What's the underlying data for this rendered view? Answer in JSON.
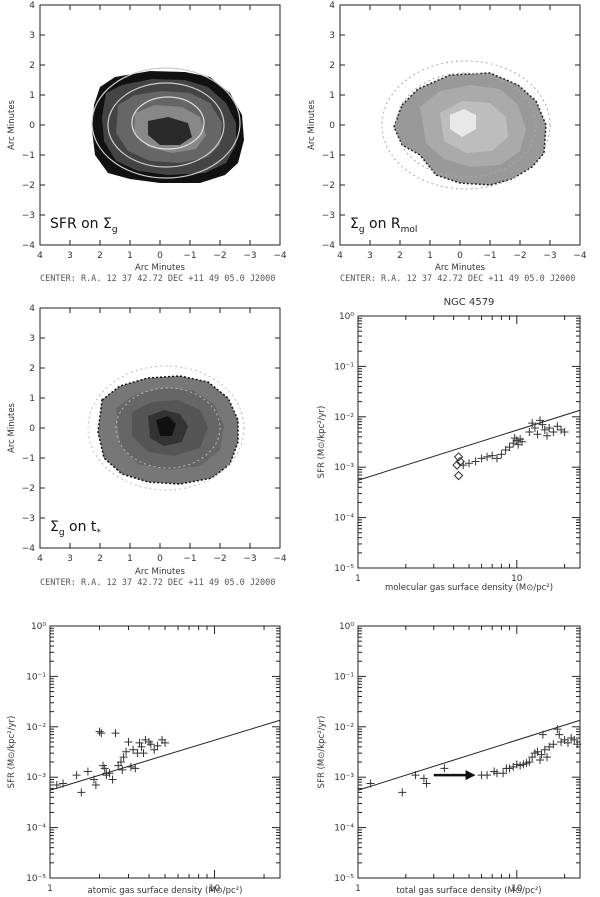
{
  "maps": [
    {
      "label_main": "SFR on Σ",
      "label_sub": "g",
      "xlabel": "Arc Minutes",
      "ylabel": "Arc Minutes",
      "center_text": "CENTER:  R.A. 12 37 42.72      DEC  +11 49 05.0      J2000",
      "x_ticks": [
        "4",
        "3",
        "2",
        "1",
        "0",
        "−1",
        "−2",
        "−3",
        "−4"
      ],
      "y_ticks": [
        "4",
        "3",
        "2",
        "1",
        "0",
        "−1",
        "−2",
        "−3",
        "−4"
      ]
    },
    {
      "label_main": "Σ",
      "label_sub": "g",
      "label_mid": " on R",
      "label_sub2": "mol",
      "xlabel": "Arc Minutes",
      "ylabel": "Arc Minutes",
      "center_text": "CENTER:  R.A. 12 37 42.72      DEC  +11 49 05.0      J2000",
      "x_ticks": [
        "4",
        "3",
        "2",
        "1",
        "0",
        "−1",
        "−2",
        "−3",
        "−4"
      ],
      "y_ticks": [
        "4",
        "3",
        "2",
        "1",
        "0",
        "−1",
        "−2",
        "−3",
        "−4"
      ]
    },
    {
      "label_main": "Σ",
      "label_sub": "g",
      "label_mid": " on t",
      "label_sub2": "*",
      "xlabel": "Arc Minutes",
      "ylabel": "Arc Minutes",
      "center_text": "CENTER:  R.A. 12 37 42.72      DEC  +11 49 05.0      J2000",
      "x_ticks": [
        "4",
        "3",
        "2",
        "1",
        "0",
        "−1",
        "−2",
        "−3",
        "−4"
      ],
      "y_ticks": [
        "4",
        "3",
        "2",
        "1",
        "0",
        "−1",
        "−2",
        "−3",
        "−4"
      ]
    }
  ],
  "chart_data": [
    {
      "type": "scatter",
      "title": "NGC 4579",
      "xlabel": "molecular gas surface density (M⊙/pc²)",
      "ylabel": "SFR (M⊙/kpc²/yr)",
      "xscale": "log",
      "yscale": "log",
      "xlim": [
        1,
        25
      ],
      "ylim": [
        1e-05,
        1
      ],
      "x_ticks": [
        "1",
        "10"
      ],
      "y_ticks": [
        "10⁰",
        "10⁻¹",
        "10⁻²",
        "10⁻³",
        "10⁻⁴",
        "10⁻⁵"
      ],
      "fit_line": [
        [
          1,
          0.00055
        ],
        [
          25,
          0.0135
        ]
      ],
      "series": [
        {
          "marker": "plus",
          "points": [
            [
              4.6,
              0.0011
            ],
            [
              5.0,
              0.0012
            ],
            [
              5.5,
              0.0013
            ],
            [
              6.0,
              0.0015
            ],
            [
              6.5,
              0.0016
            ],
            [
              7.0,
              0.0017
            ],
            [
              7.5,
              0.0015
            ],
            [
              8.0,
              0.0018
            ],
            [
              8.5,
              0.0022
            ],
            [
              9.0,
              0.0025
            ],
            [
              9.5,
              0.003
            ],
            [
              10,
              0.0034
            ],
            [
              10.2,
              0.0028
            ],
            [
              10.8,
              0.0032
            ],
            [
              12,
              0.005
            ],
            [
              12.5,
              0.0075
            ],
            [
              13,
              0.006
            ],
            [
              13.5,
              0.0045
            ],
            [
              14,
              0.0085
            ],
            [
              14.5,
              0.007
            ],
            [
              15,
              0.0055
            ],
            [
              15.5,
              0.0042
            ],
            [
              16,
              0.006
            ],
            [
              17,
              0.005
            ],
            [
              18,
              0.0065
            ],
            [
              19,
              0.0055
            ],
            [
              20,
              0.005
            ],
            [
              9.7,
              0.0038
            ],
            [
              10.5,
              0.0036
            ]
          ]
        },
        {
          "marker": "diamond",
          "points": [
            [
              4.3,
              0.0016
            ],
            [
              4.2,
              0.0011
            ],
            [
              4.4,
              0.0013
            ],
            [
              4.3,
              0.00068
            ]
          ]
        }
      ]
    },
    {
      "type": "scatter",
      "title": "",
      "xlabel": "atomic gas surface density (M⊙/pc²)",
      "ylabel": "SFR (M⊙/kpc²/yr)",
      "xscale": "log",
      "yscale": "log",
      "xlim": [
        1,
        25
      ],
      "ylim": [
        1e-05,
        1
      ],
      "x_ticks": [
        "1",
        "10"
      ],
      "y_ticks": [
        "10⁰",
        "10⁻¹",
        "10⁻²",
        "10⁻³",
        "10⁻⁴",
        "10⁻⁵"
      ],
      "fit_line": [
        [
          1,
          0.00055
        ],
        [
          25,
          0.0135
        ]
      ],
      "series": [
        {
          "marker": "plus",
          "points": [
            [
              1.1,
              0.0007
            ],
            [
              1.2,
              0.00075
            ],
            [
              1.45,
              0.0011
            ],
            [
              1.55,
              0.0005
            ],
            [
              1.7,
              0.0013
            ],
            [
              1.85,
              0.0009
            ],
            [
              1.9,
              0.0007
            ],
            [
              2.0,
              0.008
            ],
            [
              2.05,
              0.0075
            ],
            [
              2.1,
              0.0017
            ],
            [
              2.15,
              0.0015
            ],
            [
              2.2,
              0.0011
            ],
            [
              2.3,
              0.0012
            ],
            [
              2.4,
              0.0009
            ],
            [
              2.5,
              0.0075
            ],
            [
              2.6,
              0.0017
            ],
            [
              2.7,
              0.002
            ],
            [
              2.75,
              0.0014
            ],
            [
              2.8,
              0.0025
            ],
            [
              2.9,
              0.0032
            ],
            [
              3.0,
              0.005
            ],
            [
              3.1,
              0.0016
            ],
            [
              3.2,
              0.0035
            ],
            [
              3.3,
              0.0015
            ],
            [
              3.4,
              0.003
            ],
            [
              3.5,
              0.0048
            ],
            [
              3.6,
              0.004
            ],
            [
              3.7,
              0.003
            ],
            [
              3.8,
              0.0055
            ],
            [
              4.0,
              0.005
            ],
            [
              4.1,
              0.0045
            ],
            [
              4.3,
              0.0035
            ],
            [
              4.5,
              0.0042
            ],
            [
              4.8,
              0.0055
            ],
            [
              5.0,
              0.0048
            ],
            [
              2.2,
              0.0012
            ]
          ]
        }
      ]
    },
    {
      "type": "scatter",
      "title": "",
      "xlabel": "total gas surface density (M⊙/pc²)",
      "ylabel": "SFR (M⊙/kpc²/yr)",
      "xscale": "log",
      "yscale": "log",
      "xlim": [
        1,
        25
      ],
      "ylim": [
        1e-05,
        1
      ],
      "x_ticks": [
        "1",
        "10"
      ],
      "y_ticks": [
        "10⁰",
        "10⁻¹",
        "10⁻²",
        "10⁻³",
        "10⁻⁴",
        "10⁻⁵"
      ],
      "fit_line": [
        [
          1,
          0.00055
        ],
        [
          25,
          0.0135
        ]
      ],
      "arrow": {
        "from": [
          3.0,
          0.0011
        ],
        "to": [
          5.5,
          0.0011
        ]
      },
      "series": [
        {
          "marker": "plus",
          "points": [
            [
              1.2,
              0.00075
            ],
            [
              1.9,
              0.0005
            ],
            [
              2.3,
              0.0011
            ],
            [
              2.6,
              0.00095
            ],
            [
              2.7,
              0.00075
            ],
            [
              3.5,
              0.0015
            ],
            [
              6.0,
              0.0011
            ],
            [
              6.5,
              0.0011
            ],
            [
              7.2,
              0.0013
            ],
            [
              7.5,
              0.0012
            ],
            [
              8.2,
              0.0012
            ],
            [
              8.6,
              0.0015
            ],
            [
              9.0,
              0.0015
            ],
            [
              9.5,
              0.0016
            ],
            [
              10,
              0.0018
            ],
            [
              10.5,
              0.0017
            ],
            [
              11,
              0.0018
            ],
            [
              11.5,
              0.0019
            ],
            [
              12,
              0.002
            ],
            [
              12.5,
              0.0025
            ],
            [
              13,
              0.003
            ],
            [
              13.5,
              0.0032
            ],
            [
              14,
              0.0022
            ],
            [
              14.3,
              0.0028
            ],
            [
              14.6,
              0.007
            ],
            [
              15,
              0.0035
            ],
            [
              16,
              0.004
            ],
            [
              17,
              0.0045
            ],
            [
              18,
              0.009
            ],
            [
              18.5,
              0.007
            ],
            [
              19,
              0.005
            ],
            [
              20,
              0.0055
            ],
            [
              21,
              0.0048
            ],
            [
              22,
              0.006
            ],
            [
              23,
              0.0055
            ],
            [
              24,
              0.0045
            ],
            [
              15.5,
              0.0025
            ]
          ]
        }
      ]
    }
  ]
}
